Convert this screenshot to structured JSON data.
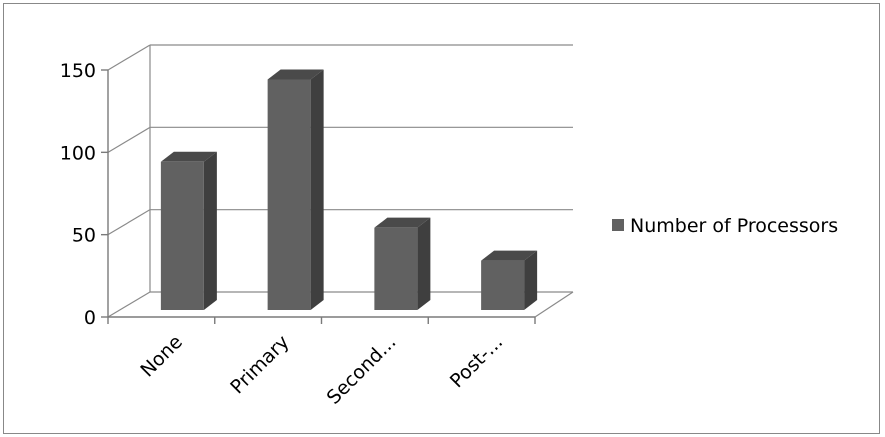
{
  "chart_data": {
    "type": "bar",
    "title": "",
    "xlabel": "",
    "ylabel": "",
    "categories": [
      "None",
      "Primary",
      "Second...",
      "Post-..."
    ],
    "series": [
      {
        "name": "Number of Processors",
        "values": [
          90,
          140,
          50,
          30
        ]
      }
    ],
    "ylim": [
      0,
      150
    ],
    "yticks": [
      0,
      50,
      100,
      150
    ],
    "grid": true,
    "legend_position": "right",
    "colors": {
      "bar_front": "#616161",
      "bar_side": "#3f3f3f",
      "bar_top": "#4a4a4a",
      "gridline": "#8a8a8a",
      "wall": "#ffffff"
    }
  }
}
